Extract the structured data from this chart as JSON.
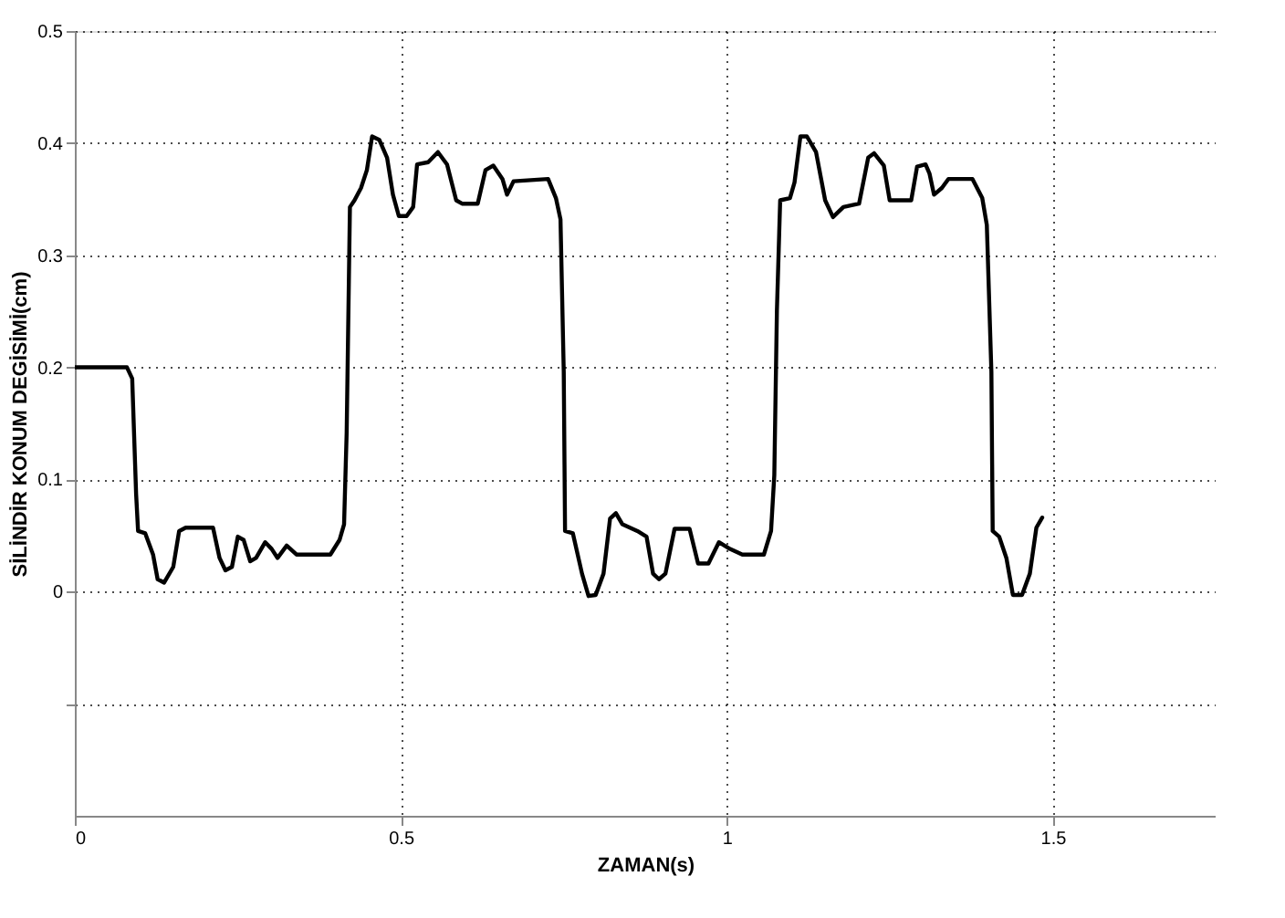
{
  "chart_data": {
    "type": "line",
    "xlabel": "ZAMAN(s)",
    "ylabel": "SİLİNDİR KONUM DEGİSİMİ(cm)",
    "xlim": [
      0,
      1.75
    ],
    "ylim": [
      -0.2,
      0.5
    ],
    "xticks": [
      0,
      0.5,
      1,
      1.5
    ],
    "yticks": [
      {
        "value": -0.1,
        "label": null
      },
      0,
      0.1,
      0.2,
      0.3,
      0.4,
      0.5
    ],
    "grid": true,
    "line_style": "solid",
    "marker": "none",
    "x": [
      0,
      0.08,
      0.088,
      0.094,
      0.097,
      0.108,
      0.12,
      0.127,
      0.137,
      0.151,
      0.16,
      0.17,
      0.212,
      0.222,
      0.231,
      0.241,
      0.25,
      0.259,
      0.269,
      0.278,
      0.292,
      0.302,
      0.311,
      0.325,
      0.34,
      0.392,
      0.406,
      0.413,
      0.417,
      0.422,
      0.429,
      0.439,
      0.448,
      0.456,
      0.467,
      0.479,
      0.488,
      0.497,
      0.509,
      0.519,
      0.525,
      0.542,
      0.557,
      0.571,
      0.585,
      0.594,
      0.618,
      0.63,
      0.642,
      0.656,
      0.663,
      0.673,
      0.726,
      0.738,
      0.745,
      0.75,
      0.752,
      0.764,
      0.778,
      0.788,
      0.799,
      0.811,
      0.821,
      0.83,
      0.84,
      0.863,
      0.877,
      0.887,
      0.896,
      0.906,
      0.92,
      0.943,
      0.956,
      0.972,
      0.988,
      1.005,
      1.024,
      1.057,
      1.068,
      1.073,
      1.077,
      1.082,
      1.097,
      1.104,
      1.113,
      1.123,
      1.137,
      1.151,
      1.163,
      1.179,
      1.203,
      1.217,
      1.226,
      1.241,
      1.25,
      1.283,
      1.292,
      1.305,
      1.311,
      1.318,
      1.33,
      1.34,
      1.377,
      1.392,
      1.399,
      1.406,
      1.408,
      1.418,
      1.429,
      1.439,
      1.453,
      1.465,
      1.475,
      1.484
    ],
    "series": [
      {
        "color": "#000000",
        "values": [
          0.2,
          0.2,
          0.19,
          0.087,
          0.054,
          0.052,
          0.033,
          0.011,
          0.008,
          0.022,
          0.054,
          0.057,
          0.057,
          0.03,
          0.019,
          0.022,
          0.049,
          0.046,
          0.027,
          0.03,
          0.044,
          0.038,
          0.03,
          0.041,
          0.033,
          0.033,
          0.046,
          0.06,
          0.142,
          0.343,
          0.349,
          0.36,
          0.376,
          0.406,
          0.403,
          0.387,
          0.354,
          0.335,
          0.335,
          0.343,
          0.381,
          0.383,
          0.392,
          0.381,
          0.349,
          0.346,
          0.346,
          0.376,
          0.38,
          0.368,
          0.354,
          0.366,
          0.368,
          0.351,
          0.332,
          0.196,
          0.054,
          0.052,
          0.016,
          -0.004,
          -0.003,
          0.016,
          0.065,
          0.07,
          0.06,
          0.054,
          0.049,
          0.016,
          0.011,
          0.016,
          0.056,
          0.056,
          0.025,
          0.025,
          0.044,
          0.038,
          0.033,
          0.033,
          0.054,
          0.104,
          0.251,
          0.349,
          0.351,
          0.365,
          0.406,
          0.406,
          0.392,
          0.349,
          0.334,
          0.343,
          0.346,
          0.387,
          0.391,
          0.38,
          0.349,
          0.349,
          0.379,
          0.381,
          0.373,
          0.354,
          0.36,
          0.368,
          0.368,
          0.351,
          0.327,
          0.196,
          0.054,
          0.049,
          0.03,
          -0.003,
          -0.003,
          0.016,
          0.057,
          0.066
        ]
      }
    ]
  }
}
